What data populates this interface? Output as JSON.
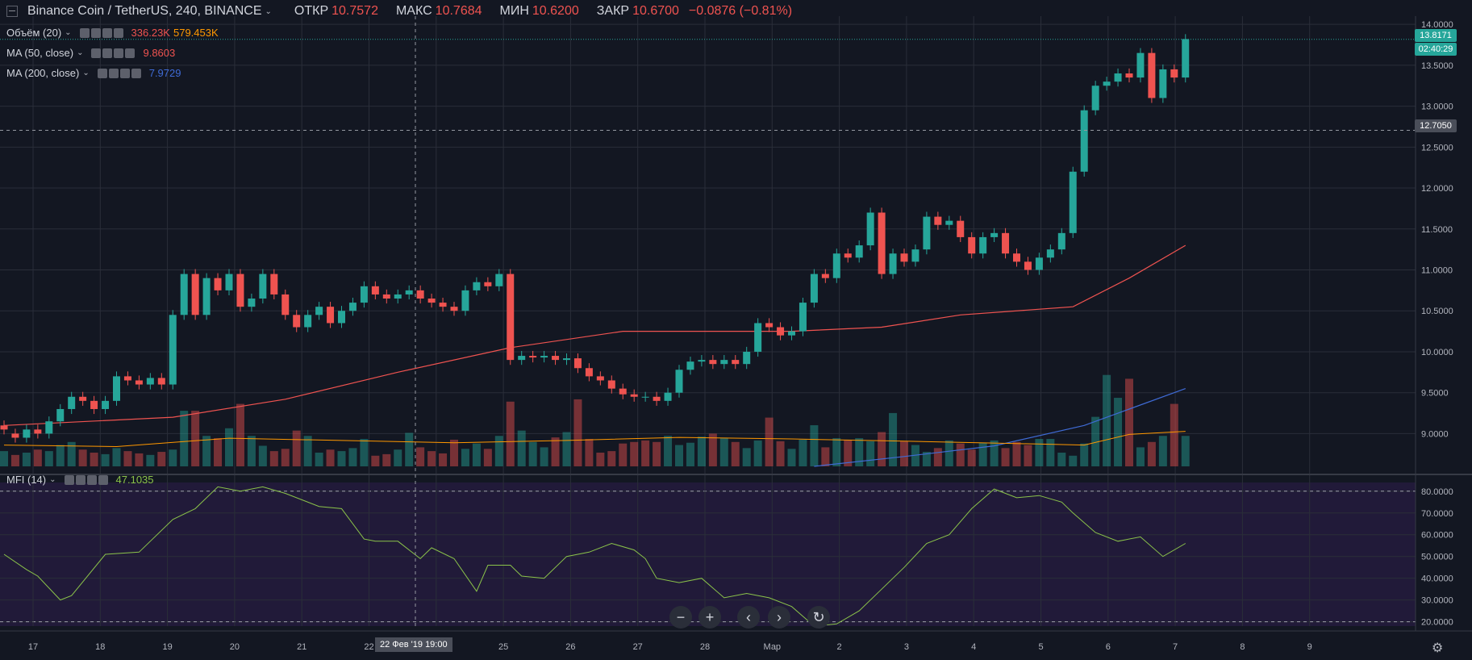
{
  "header": {
    "symbol": "Binance Coin / TetherUS, 240, BINANCE",
    "open_label": "ОТКР",
    "open": "10.7572",
    "high_label": "МАКС",
    "high": "10.7684",
    "low_label": "МИН",
    "low": "10.6200",
    "close_label": "ЗАКР",
    "close": "10.6700",
    "change": "−0.0876 (−0.81%)"
  },
  "indicators": {
    "volume": {
      "name": "Объём (20)",
      "v1": "336.23K",
      "v2": "579.453K",
      "c1": "#ef5350",
      "c2": "#ff9800"
    },
    "ma50": {
      "name": "MA (50, close)",
      "value": "9.8603",
      "color": "#ef5350"
    },
    "ma200": {
      "name": "MA (200, close)",
      "value": "7.9729",
      "color": "#3f6bd6"
    },
    "mfi": {
      "name": "MFI (14)",
      "value": "47.1035",
      "color": "#8bc34a"
    }
  },
  "price_tags": {
    "last": "13.8171",
    "timer": "02:40:29",
    "crosshair": "12.7050"
  },
  "crosshair_time": "22 Фев '19  19:00",
  "colors": {
    "up": "#26a69a",
    "down": "#ef5350",
    "bg": "#131722",
    "grid": "#2a2e39",
    "mfi_bg": "#2b1d4a"
  },
  "nav_buttons": [
    "−",
    "+",
    "‹",
    "›",
    "↻"
  ],
  "chart_data": {
    "type": "candlestick",
    "xlabels": [
      "17",
      "18",
      "19",
      "20",
      "21",
      "22",
      "24",
      "25",
      "26",
      "27",
      "28",
      "Мар",
      "2",
      "3",
      "4",
      "5",
      "6",
      "7",
      "8",
      "9"
    ],
    "price_ticks": [
      "14.0000",
      "13.5000",
      "13.0000",
      "12.5000",
      "12.0000",
      "11.5000",
      "11.0000",
      "10.5000",
      "10.0000",
      "9.5000",
      "9.0000"
    ],
    "ylim": [
      8.6,
      14.1
    ],
    "mfi_ticks": [
      "80.0000",
      "70.0000",
      "60.0000",
      "50.0000",
      "40.0000",
      "30.0000",
      "20.0000"
    ],
    "mfi_ylim": [
      18,
      84
    ],
    "candles": [
      [
        9.1,
        9.05
      ],
      [
        9.0,
        8.95
      ],
      [
        8.95,
        9.05
      ],
      [
        9.05,
        9.0
      ],
      [
        9.0,
        9.15
      ],
      [
        9.15,
        9.3
      ],
      [
        9.3,
        9.45
      ],
      [
        9.45,
        9.4
      ],
      [
        9.4,
        9.3
      ],
      [
        9.3,
        9.4
      ],
      [
        9.4,
        9.7
      ],
      [
        9.7,
        9.65
      ],
      [
        9.65,
        9.6
      ],
      [
        9.6,
        9.68
      ],
      [
        9.68,
        9.6
      ],
      [
        9.6,
        10.45
      ],
      [
        10.45,
        10.95
      ],
      [
        10.95,
        10.45
      ],
      [
        10.45,
        10.9
      ],
      [
        10.9,
        10.75
      ],
      [
        10.75,
        10.95
      ],
      [
        10.95,
        10.55
      ],
      [
        10.55,
        10.65
      ],
      [
        10.65,
        10.95
      ],
      [
        10.95,
        10.7
      ],
      [
        10.7,
        10.45
      ],
      [
        10.45,
        10.3
      ],
      [
        10.3,
        10.45
      ],
      [
        10.45,
        10.55
      ],
      [
        10.55,
        10.35
      ],
      [
        10.35,
        10.5
      ],
      [
        10.5,
        10.6
      ],
      [
        10.6,
        10.8
      ],
      [
        10.8,
        10.7
      ],
      [
        10.7,
        10.65
      ],
      [
        10.65,
        10.7
      ],
      [
        10.7,
        10.75
      ],
      [
        10.75,
        10.65
      ],
      [
        10.65,
        10.6
      ],
      [
        10.6,
        10.55
      ],
      [
        10.55,
        10.5
      ],
      [
        10.5,
        10.75
      ],
      [
        10.75,
        10.85
      ],
      [
        10.85,
        10.8
      ],
      [
        10.8,
        10.95
      ],
      [
        10.95,
        9.9
      ],
      [
        9.9,
        9.95
      ],
      [
        9.95,
        9.93
      ],
      [
        9.93,
        9.95
      ],
      [
        9.95,
        9.9
      ],
      [
        9.9,
        9.92
      ],
      [
        9.92,
        9.8
      ],
      [
        9.8,
        9.7
      ],
      [
        9.7,
        9.65
      ],
      [
        9.65,
        9.55
      ],
      [
        9.55,
        9.48
      ],
      [
        9.48,
        9.45
      ],
      [
        9.45,
        9.45
      ],
      [
        9.45,
        9.4
      ],
      [
        9.4,
        9.5
      ],
      [
        9.5,
        9.78
      ],
      [
        9.78,
        9.88
      ],
      [
        9.88,
        9.9
      ],
      [
        9.9,
        9.85
      ],
      [
        9.85,
        9.9
      ],
      [
        9.9,
        9.85
      ],
      [
        9.85,
        10.0
      ],
      [
        10.0,
        10.35
      ],
      [
        10.35,
        10.3
      ],
      [
        10.3,
        10.2
      ],
      [
        10.2,
        10.25
      ],
      [
        10.25,
        10.6
      ],
      [
        10.6,
        10.95
      ],
      [
        10.95,
        10.9
      ],
      [
        10.9,
        11.2
      ],
      [
        11.2,
        11.15
      ],
      [
        11.15,
        11.3
      ],
      [
        11.3,
        11.7
      ],
      [
        11.7,
        10.95
      ],
      [
        10.95,
        11.2
      ],
      [
        11.2,
        11.1
      ],
      [
        11.1,
        11.25
      ],
      [
        11.25,
        11.65
      ],
      [
        11.65,
        11.55
      ],
      [
        11.55,
        11.6
      ],
      [
        11.6,
        11.4
      ],
      [
        11.4,
        11.2
      ],
      [
        11.2,
        11.4
      ],
      [
        11.4,
        11.45
      ],
      [
        11.45,
        11.2
      ],
      [
        11.2,
        11.1
      ],
      [
        11.1,
        11.0
      ],
      [
        11.0,
        11.15
      ],
      [
        11.15,
        11.25
      ],
      [
        11.25,
        11.45
      ],
      [
        11.45,
        12.2
      ],
      [
        12.2,
        12.95
      ],
      [
        12.95,
        13.25
      ],
      [
        13.25,
        13.3
      ],
      [
        13.3,
        13.4
      ],
      [
        13.4,
        13.35
      ],
      [
        13.35,
        13.65
      ],
      [
        13.65,
        13.1
      ],
      [
        13.1,
        13.45
      ],
      [
        13.45,
        13.35
      ],
      [
        13.35,
        13.82
      ]
    ],
    "volume": [
      20,
      15,
      18,
      22,
      20,
      28,
      32,
      22,
      18,
      16,
      24,
      20,
      17,
      15,
      19,
      22,
      73,
      73,
      40,
      37,
      50,
      82,
      40,
      27,
      20,
      23,
      47,
      40,
      18,
      22,
      20,
      24,
      36,
      14,
      16,
      22,
      44,
      25,
      20,
      17,
      35,
      23,
      30,
      23,
      40,
      85,
      47,
      32,
      25,
      38,
      45,
      88,
      36,
      18,
      20,
      30,
      32,
      34,
      32,
      40,
      28,
      31,
      39,
      43,
      37,
      32,
      24,
      34,
      64,
      33,
      23,
      35,
      54,
      25,
      37,
      35,
      37,
      33,
      45,
      70,
      33,
      28,
      19,
      24,
      34,
      30,
      22,
      31,
      34,
      24,
      32,
      28,
      36,
      36,
      18,
      14,
      30,
      65,
      120,
      90,
      115,
      25,
      32,
      40,
      82,
      40
    ],
    "volume_up": [
      1,
      0,
      1,
      0,
      1,
      1,
      1,
      0,
      0,
      1,
      1,
      0,
      0,
      1,
      0,
      1,
      1,
      0,
      1,
      0,
      1,
      0,
      1,
      1,
      0,
      0,
      0,
      1,
      1,
      0,
      1,
      1,
      1,
      0,
      0,
      1,
      1,
      0,
      0,
      0,
      0,
      1,
      1,
      0,
      1,
      0,
      1,
      1,
      1,
      0,
      1,
      0,
      0,
      0,
      0,
      0,
      0,
      0,
      0,
      1,
      1,
      1,
      1,
      0,
      1,
      0,
      1,
      1,
      0,
      0,
      1,
      1,
      1,
      0,
      1,
      0,
      1,
      1,
      0,
      1,
      0,
      1,
      1,
      0,
      1,
      0,
      0,
      1,
      1,
      0,
      0,
      0,
      1,
      1,
      1,
      1,
      1,
      1,
      1,
      1,
      0,
      1,
      0,
      1,
      0,
      1
    ],
    "ma50": [
      [
        0,
        9.1
      ],
      [
        15,
        9.2
      ],
      [
        25,
        9.42
      ],
      [
        35,
        9.75
      ],
      [
        45,
        10.05
      ],
      [
        55,
        10.25
      ],
      [
        70,
        10.25
      ],
      [
        78,
        10.3
      ],
      [
        85,
        10.45
      ],
      [
        95,
        10.55
      ],
      [
        100,
        10.9
      ],
      [
        105,
        11.3
      ]
    ],
    "ma200": [
      [
        72,
        8.6
      ],
      [
        80,
        8.72
      ],
      [
        88,
        8.85
      ],
      [
        96,
        9.1
      ],
      [
        100,
        9.3
      ],
      [
        105,
        9.55
      ]
    ],
    "vol_ma": [
      [
        0,
        28
      ],
      [
        10,
        26
      ],
      [
        20,
        37
      ],
      [
        30,
        34
      ],
      [
        40,
        31
      ],
      [
        50,
        34
      ],
      [
        60,
        38
      ],
      [
        70,
        36
      ],
      [
        80,
        33
      ],
      [
        90,
        30
      ],
      [
        96,
        28
      ],
      [
        100,
        42
      ],
      [
        105,
        46
      ]
    ],
    "mfi": [
      [
        0,
        51
      ],
      [
        2,
        44
      ],
      [
        3,
        41
      ],
      [
        5,
        30
      ],
      [
        6,
        32
      ],
      [
        9,
        51
      ],
      [
        12,
        52
      ],
      [
        15,
        67
      ],
      [
        17,
        72
      ],
      [
        19,
        82
      ],
      [
        21,
        80
      ],
      [
        23,
        82
      ],
      [
        25,
        79
      ],
      [
        28,
        73
      ],
      [
        30,
        72
      ],
      [
        32,
        58
      ],
      [
        33,
        57
      ],
      [
        35,
        57
      ],
      [
        37,
        49
      ],
      [
        38,
        54
      ],
      [
        40,
        49
      ],
      [
        42,
        34
      ],
      [
        43,
        46
      ],
      [
        45,
        46
      ],
      [
        46,
        41
      ],
      [
        48,
        40
      ],
      [
        50,
        50
      ],
      [
        52,
        52
      ],
      [
        54,
        56
      ],
      [
        56,
        53
      ],
      [
        57,
        49
      ],
      [
        58,
        40
      ],
      [
        60,
        38
      ],
      [
        62,
        40
      ],
      [
        64,
        31
      ],
      [
        66,
        33
      ],
      [
        68,
        31
      ],
      [
        70,
        27
      ],
      [
        72,
        18
      ],
      [
        74,
        19
      ],
      [
        76,
        25
      ],
      [
        78,
        35
      ],
      [
        80,
        45
      ],
      [
        82,
        56
      ],
      [
        84,
        60
      ],
      [
        86,
        72
      ],
      [
        88,
        81
      ],
      [
        90,
        77
      ],
      [
        92,
        78
      ],
      [
        94,
        75
      ],
      [
        95,
        70
      ],
      [
        97,
        61
      ],
      [
        99,
        57
      ],
      [
        101,
        59
      ],
      [
        103,
        50
      ],
      [
        105,
        56
      ]
    ]
  }
}
